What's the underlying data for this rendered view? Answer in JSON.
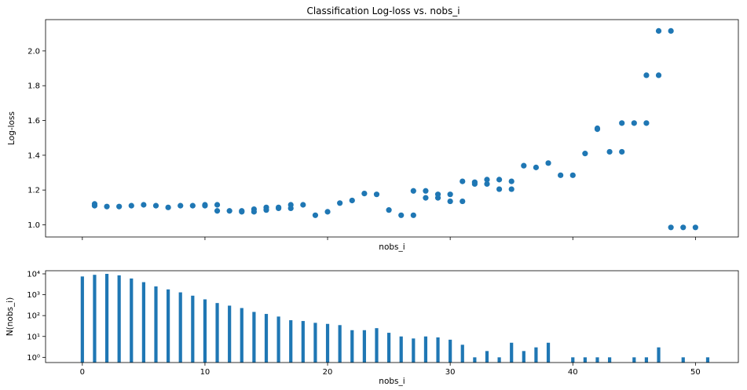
{
  "colors": {
    "accent": "#1f77b4",
    "axes": "#000000",
    "background": "#ffffff"
  },
  "chart_data": [
    {
      "type": "scatter",
      "title": "Classification Log-loss vs. nobs_i",
      "xlabel": "nobs_i",
      "ylabel": "Log-loss",
      "xlim": [
        -3,
        53.5
      ],
      "ylim": [
        0.93,
        2.18
      ],
      "yticks": [
        1.0,
        1.2,
        1.4,
        1.6,
        1.8,
        2.0
      ],
      "ytick_labels": [
        "1.0",
        "1.2",
        "1.4",
        "1.6",
        "1.8",
        "2.0"
      ],
      "xticks": [
        0,
        10,
        20,
        30,
        40,
        50
      ],
      "show_xtick_labels": false,
      "grid": false,
      "points": [
        [
          1,
          1.12
        ],
        [
          1,
          1.11
        ],
        [
          2,
          1.105
        ],
        [
          3,
          1.105
        ],
        [
          4,
          1.11
        ],
        [
          5,
          1.115
        ],
        [
          6,
          1.11
        ],
        [
          7,
          1.1
        ],
        [
          8,
          1.11
        ],
        [
          9,
          1.11
        ],
        [
          10,
          1.115
        ],
        [
          10,
          1.11
        ],
        [
          11,
          1.115
        ],
        [
          11,
          1.08
        ],
        [
          12,
          1.08
        ],
        [
          13,
          1.075
        ],
        [
          13,
          1.08
        ],
        [
          14,
          1.09
        ],
        [
          14,
          1.075
        ],
        [
          15,
          1.1
        ],
        [
          15,
          1.085
        ],
        [
          16,
          1.1
        ],
        [
          16,
          1.095
        ],
        [
          17,
          1.115
        ],
        [
          17,
          1.095
        ],
        [
          18,
          1.115
        ],
        [
          19,
          1.055
        ],
        [
          20,
          1.075
        ],
        [
          21,
          1.125
        ],
        [
          22,
          1.14
        ],
        [
          23,
          1.18
        ],
        [
          24,
          1.175
        ],
        [
          25,
          1.085
        ],
        [
          26,
          1.055
        ],
        [
          27,
          1.055
        ],
        [
          27,
          1.195
        ],
        [
          28,
          1.195
        ],
        [
          28,
          1.155
        ],
        [
          29,
          1.175
        ],
        [
          29,
          1.155
        ],
        [
          30,
          1.175
        ],
        [
          30,
          1.135
        ],
        [
          31,
          1.135
        ],
        [
          31,
          1.25
        ],
        [
          32,
          1.245
        ],
        [
          32,
          1.235
        ],
        [
          33,
          1.26
        ],
        [
          33,
          1.235
        ],
        [
          34,
          1.26
        ],
        [
          34,
          1.205
        ],
        [
          35,
          1.25
        ],
        [
          35,
          1.205
        ],
        [
          36,
          1.34
        ],
        [
          37,
          1.33
        ],
        [
          38,
          1.355
        ],
        [
          39,
          1.285
        ],
        [
          40,
          1.285
        ],
        [
          41,
          1.41
        ],
        [
          42,
          1.555
        ],
        [
          42,
          1.55
        ],
        [
          43,
          1.42
        ],
        [
          44,
          1.42
        ],
        [
          44,
          1.585
        ],
        [
          45,
          1.585
        ],
        [
          46,
          1.585
        ],
        [
          46,
          1.86
        ],
        [
          47,
          1.86
        ],
        [
          47,
          2.115
        ],
        [
          48,
          2.115
        ],
        [
          48,
          0.985
        ],
        [
          49,
          0.985
        ],
        [
          50,
          0.985
        ]
      ]
    },
    {
      "type": "bar",
      "xlabel": "nobs_i",
      "ylabel": "N(nobs_i)",
      "yscale": "log",
      "xlim": [
        -3,
        53.5
      ],
      "ylim_log10": [
        -0.25,
        4.15
      ],
      "xticks": [
        0,
        10,
        20,
        30,
        40,
        50
      ],
      "xtick_labels": [
        "0",
        "10",
        "20",
        "30",
        "40",
        "50"
      ],
      "yticks": [
        1,
        10,
        100,
        1000,
        10000
      ],
      "ytick_labels": [
        "10⁰",
        "10¹",
        "10²",
        "10³",
        "10⁴"
      ],
      "grid": false,
      "x": [
        0,
        1,
        2,
        3,
        4,
        5,
        6,
        7,
        8,
        9,
        10,
        11,
        12,
        13,
        14,
        15,
        16,
        17,
        18,
        19,
        20,
        21,
        22,
        23,
        24,
        25,
        26,
        27,
        28,
        29,
        30,
        31,
        32,
        33,
        34,
        35,
        36,
        37,
        38,
        40,
        41,
        42,
        43,
        45,
        46,
        47,
        49,
        51
      ],
      "values": [
        7500,
        9000,
        10000,
        8500,
        6000,
        4000,
        2500,
        1800,
        1300,
        900,
        600,
        400,
        300,
        230,
        150,
        120,
        90,
        60,
        55,
        45,
        40,
        35,
        20,
        20,
        25,
        15,
        10,
        8,
        10,
        9,
        7,
        4,
        1,
        2,
        1,
        5,
        2,
        3,
        5,
        1,
        1,
        1,
        1,
        1,
        1,
        3,
        1,
        1
      ]
    }
  ]
}
